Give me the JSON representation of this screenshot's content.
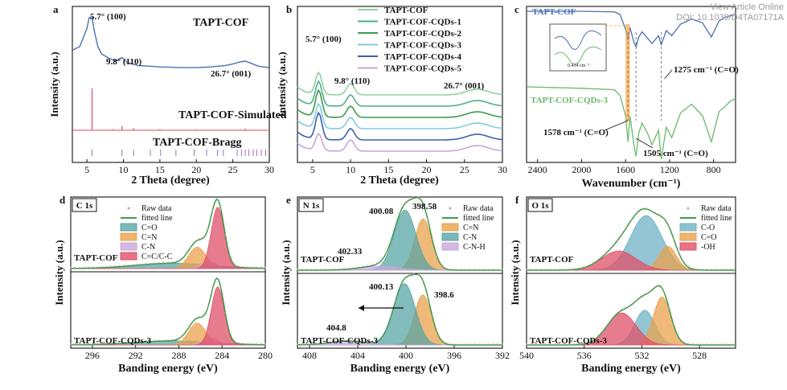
{
  "watermark": {
    "line1": "View Article Online",
    "line2": "DOI: 10.1039/D4TA07171A"
  },
  "colors": {
    "cof": "#4a6fb0",
    "sim": "#d9485f",
    "bragg": "#9b6fb5",
    "cqd1": "#9fd7b0",
    "cqd2": "#3c9a4a",
    "cqd3": "#7ccbd8",
    "cqd4": "#3b5fae",
    "cqd5": "#c6a6dc",
    "ftir_cqd": "#6bb86b",
    "fit": "#3c9a4a",
    "raw": "#c9a0a0",
    "c_o": "#5aa6a6",
    "c_n_eq": "#e8a24c",
    "c_n": "#c9a8dc",
    "c_c": "#e0506a",
    "n_eq": "#e8a24c",
    "n_c": "#5aa6a6",
    "n_h": "#c9a8dc",
    "o_co": "#6fb2c6",
    "o_c_eq": "#e8a24c",
    "o_oh": "#e0506a"
  },
  "panels": {
    "a": {
      "letter": "a",
      "title": "TAPT-COF",
      "sim_label": "TAPT-COF-Simulated",
      "bragg_label": "TAPT-COF-Bragg",
      "peaks": [
        "5.7° (100)",
        "9.8° (110)",
        "26.7° (001)"
      ],
      "xlabel": "2 Theta (degree)",
      "ylabel": "Intensity (a.u.)"
    },
    "b": {
      "letter": "b",
      "peaks": [
        "5.7° (100)",
        "9.8° (110)",
        "26.7° (001)"
      ],
      "xlabel": "2 Theta (degree)",
      "ylabel": "Intensity (a.u.)"
    },
    "c": {
      "letter": "c",
      "label_cof": "TAPT-COF",
      "label_cqd": "TAPT-COF-CQDs-3",
      "annotations": [
        "1275 cm⁻¹ (C=O)",
        "1578 cm⁻¹ (C=O)",
        "1505 cm⁻¹ (C=O)"
      ],
      "inset_label": "0.434 cm⁻¹",
      "xlabel": "Wavenumber (cm⁻¹)"
    },
    "d": {
      "letter": "d",
      "tag": "C 1s",
      "top_label": "TAPT-COF",
      "bottom_label": "TAPT-COF-CQDs-3",
      "legend": [
        "Raw data",
        "fitted line",
        "C=O",
        "C=N",
        "C-N",
        "C=C/C-C"
      ],
      "xlabel": "Banding energy (eV)",
      "ylabel": "Intensity (a.u.)"
    },
    "e": {
      "letter": "e",
      "tag": "N 1s",
      "top_label": "TAPT-COF",
      "bottom_label": "TAPT-COF-CQDs-3",
      "peaks_top": [
        "400.08",
        "398.58",
        "402.33"
      ],
      "peaks_bottom": [
        "400.13",
        "398.6",
        "404.8"
      ],
      "legend": [
        "Raw data",
        "fitted line",
        "C=N",
        "C-N",
        "C-N-H"
      ],
      "xlabel": "Banding energy (eV)",
      "ylabel": "Intensity (a.u.)"
    },
    "f": {
      "letter": "f",
      "tag": "O 1s",
      "top_label": "TAPT-COF",
      "bottom_label": "TAPT-COF-CQDs-3",
      "legend": [
        "Raw data",
        "fitted line",
        "C-O",
        "C=O",
        "-OH"
      ],
      "xlabel": "Banding energy (eV)",
      "ylabel": "Intensity (a.u.)"
    }
  },
  "chart_data": [
    {
      "panel": "a",
      "type": "line",
      "xlabel": "2 Theta (degree)",
      "ylabel": "Intensity (a.u.)",
      "xlim": [
        3,
        30
      ],
      "xticks": [
        5,
        10,
        15,
        20,
        25,
        30
      ],
      "series": [
        {
          "name": "TAPT-COF",
          "x": [
            3,
            4,
            5,
            5.3,
            5.7,
            6,
            6.5,
            7,
            8,
            9,
            9.8,
            10.5,
            12,
            15,
            18,
            20,
            22,
            24,
            25,
            26,
            26.7,
            27.5,
            28.5,
            30
          ],
          "y": [
            0.55,
            0.6,
            0.85,
            1.0,
            1.0,
            0.82,
            0.6,
            0.5,
            0.44,
            0.4,
            0.45,
            0.38,
            0.34,
            0.32,
            0.31,
            0.31,
            0.32,
            0.34,
            0.36,
            0.39,
            0.4,
            0.37,
            0.33,
            0.31
          ]
        },
        {
          "name": "TAPT-COF-Simulated",
          "x": [
            5.7,
            8.5,
            9.8,
            11.4,
            15,
            20,
            26.7
          ],
          "y": [
            1.0,
            0.03,
            0.1,
            0.05,
            0.03,
            0.02,
            0.04
          ]
        },
        {
          "name": "TAPT-COF-Bragg",
          "x": [
            5.7,
            9.8,
            11.4,
            13.7,
            15.1,
            17.2,
            19.7,
            21.4,
            22.9,
            23.7,
            25.6,
            26.2,
            26.7,
            27.2,
            27.8,
            28.3,
            28.9,
            29.5
          ]
        }
      ],
      "annotations": [
        "5.7° (100)",
        "9.8° (110)",
        "26.7° (001)"
      ]
    },
    {
      "panel": "b",
      "type": "line",
      "xlabel": "2 Theta (degree)",
      "ylabel": "Intensity (a.u.)",
      "xlim": [
        3,
        30
      ],
      "xticks": [
        5,
        10,
        15,
        20,
        25,
        30
      ],
      "series": [
        {
          "name": "TAPT-COF",
          "offset": 5,
          "peak": 0.45
        },
        {
          "name": "TAPT-COF-CQDs-1",
          "offset": 4,
          "peak": 0.5
        },
        {
          "name": "TAPT-COF-CQDs-2",
          "offset": 3,
          "peak": 0.55
        },
        {
          "name": "TAPT-COF-CQDs-3",
          "offset": 2,
          "peak": 0.5
        },
        {
          "name": "TAPT-COF-CQDs-4",
          "offset": 1,
          "peak": 0.55
        },
        {
          "name": "TAPT-COF-CQDs-5",
          "offset": 0,
          "peak": 0.35
        }
      ],
      "annotations": [
        "5.7° (100)",
        "9.8° (110)",
        "26.7° (001)"
      ]
    },
    {
      "panel": "c",
      "type": "line",
      "xlabel": "Wavenumber (cm⁻¹)",
      "xlim": [
        2500,
        600
      ],
      "xticks": [
        2400,
        2000,
        1600,
        1200,
        800
      ],
      "series": [
        {
          "name": "TAPT-COF",
          "x": [
            2500,
            2000,
            1700,
            1650,
            1600,
            1578,
            1560,
            1520,
            1505,
            1480,
            1450,
            1400,
            1360,
            1300,
            1275,
            1230,
            1180,
            1100,
            1000,
            900,
            820,
            750,
            700,
            650,
            600
          ],
          "y": [
            1.0,
            1.0,
            0.99,
            0.95,
            0.72,
            0.55,
            0.75,
            0.5,
            0.45,
            0.6,
            0.68,
            0.58,
            0.5,
            0.62,
            0.48,
            0.7,
            0.62,
            0.8,
            0.88,
            0.82,
            0.6,
            0.85,
            0.9,
            0.93,
            0.95
          ]
        },
        {
          "name": "TAPT-COF-CQDs-3",
          "x": [
            2500,
            2000,
            1700,
            1650,
            1600,
            1578,
            1560,
            1520,
            1505,
            1480,
            1450,
            1400,
            1360,
            1300,
            1275,
            1230,
            1180,
            1100,
            1000,
            900,
            820,
            750,
            700,
            650,
            600
          ],
          "y": [
            0.5,
            0.49,
            0.48,
            0.44,
            0.3,
            0.12,
            0.3,
            0.08,
            0.02,
            0.18,
            0.25,
            0.18,
            0.1,
            0.2,
            0.0,
            0.22,
            0.15,
            0.32,
            0.38,
            0.3,
            0.12,
            0.33,
            0.36,
            0.4,
            0.42
          ]
        }
      ],
      "annotations": [
        "1275 cm⁻¹ (C=O)",
        "1578 cm⁻¹ (C=O)",
        "1505 cm⁻¹ (C=O)"
      ]
    },
    {
      "panel": "d",
      "type": "line",
      "xlabel": "Banding energy (eV)",
      "ylabel": "Intensity (a.u.)",
      "xlim": [
        298,
        280
      ],
      "xticks": [
        296,
        292,
        288,
        284,
        280
      ],
      "series": [
        {
          "name": "TAPT-COF",
          "components": [
            {
              "name": "C=O",
              "center": 288.5,
              "height": 0.08,
              "width": 3.5
            },
            {
              "name": "C=N",
              "center": 286.3,
              "height": 0.32,
              "width": 0.8
            },
            {
              "name": "C-N",
              "center": 285.2,
              "height": 0.1,
              "width": 0.7
            },
            {
              "name": "C=C/C-C",
              "center": 284.4,
              "height": 0.92,
              "width": 0.6
            }
          ]
        },
        {
          "name": "TAPT-COF-CQDs-3",
          "components": [
            {
              "name": "C=O",
              "center": 288.5,
              "height": 0.06,
              "width": 3.5
            },
            {
              "name": "C=N",
              "center": 286.3,
              "height": 0.32,
              "width": 0.8
            },
            {
              "name": "C-N",
              "center": 285.0,
              "height": 0.1,
              "width": 0.7
            },
            {
              "name": "C=C/C-C",
              "center": 284.4,
              "height": 0.85,
              "width": 0.6
            }
          ]
        }
      ]
    },
    {
      "panel": "e",
      "type": "line",
      "xlabel": "Banding energy (eV)",
      "ylabel": "Intensity (a.u.)",
      "xlim": [
        409,
        392
      ],
      "xticks": [
        408,
        404,
        400,
        396,
        392
      ],
      "series": [
        {
          "name": "TAPT-COF",
          "components": [
            {
              "name": "C=N",
              "center": 398.58,
              "height": 0.75,
              "width": 0.7
            },
            {
              "name": "C-N",
              "center": 400.08,
              "height": 0.88,
              "width": 0.9
            },
            {
              "name": "C-N-H",
              "center": 402.33,
              "height": 0.06,
              "width": 1.5
            }
          ]
        },
        {
          "name": "TAPT-COF-CQDs-3",
          "components": [
            {
              "name": "C=N",
              "center": 398.6,
              "height": 0.75,
              "width": 0.7
            },
            {
              "name": "C-N",
              "center": 400.13,
              "height": 0.92,
              "width": 0.9
            },
            {
              "name": "C-N-H",
              "center": 404.8,
              "height": 0.06,
              "width": 1.5
            }
          ]
        }
      ]
    },
    {
      "panel": "f",
      "type": "line",
      "xlabel": "Banding energy (eV)",
      "ylabel": "Intensity (a.u.)",
      "xlim": [
        540,
        525.5
      ],
      "xticks": [
        540,
        536,
        532,
        528
      ],
      "series": [
        {
          "name": "TAPT-COF",
          "components": [
            {
              "name": "C-O",
              "center": 531.7,
              "height": 0.8,
              "width": 1.1
            },
            {
              "name": "C=O",
              "center": 530.2,
              "height": 0.35,
              "width": 0.6
            },
            {
              "name": "-OH",
              "center": 533.6,
              "height": 0.28,
              "width": 1.2
            }
          ]
        },
        {
          "name": "TAPT-COF-CQDs-3",
          "components": [
            {
              "name": "C-O",
              "center": 531.8,
              "height": 0.52,
              "width": 0.7
            },
            {
              "name": "C=O",
              "center": 530.6,
              "height": 0.72,
              "width": 0.6
            },
            {
              "name": "-OH",
              "center": 533.4,
              "height": 0.48,
              "width": 1.0
            }
          ]
        }
      ]
    }
  ]
}
